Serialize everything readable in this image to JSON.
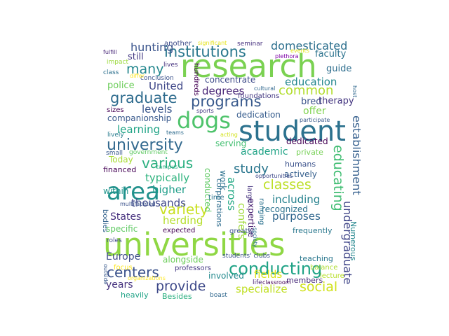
{
  "words": [
    {
      "id": "w-universities",
      "text": "universities",
      "color": "#8fd744"
    },
    {
      "id": "w-research",
      "text": "research",
      "color": "#7ad151"
    },
    {
      "id": "w-student",
      "text": "student",
      "color": "#2c728e"
    },
    {
      "id": "w-dogs",
      "text": "dogs",
      "color": "#4ec36b"
    },
    {
      "id": "w-area",
      "text": "area",
      "color": "#21918c"
    },
    {
      "id": "w-institutions",
      "text": "institutions",
      "color": "#2a788e"
    },
    {
      "id": "w-conducting",
      "text": "conducting",
      "color": "#20a386"
    },
    {
      "id": "w-university",
      "text": "university",
      "color": "#31688e"
    },
    {
      "id": "w-graduate",
      "text": "graduate",
      "color": "#2f6c8e"
    },
    {
      "id": "w-programs",
      "text": "programs",
      "color": "#38598c"
    },
    {
      "id": "w-various",
      "text": "various",
      "color": "#29af7f"
    },
    {
      "id": "w-variety",
      "text": "variety",
      "color": "#c8e020"
    },
    {
      "id": "w-centers",
      "text": "centers",
      "color": "#3b528b"
    },
    {
      "id": "w-provide",
      "text": "provide",
      "color": "#3e4989"
    },
    {
      "id": "w-social",
      "text": "social",
      "color": "#d0e11c"
    },
    {
      "id": "w-classes",
      "text": "classes",
      "color": "#bddf26"
    },
    {
      "id": "w-many",
      "text": "many",
      "color": "#24878e"
    },
    {
      "id": "w-common",
      "text": "common",
      "color": "#b2dd2d"
    },
    {
      "id": "w-study",
      "text": "study",
      "color": "#2a768e"
    },
    {
      "id": "w-hunting",
      "text": "hunting",
      "color": "#3a548c"
    },
    {
      "id": "w-domesticated",
      "text": "domesticated",
      "color": "#2d708e"
    },
    {
      "id": "w-educating",
      "text": "educating",
      "color": "#40bd72"
    },
    {
      "id": "w-establishment",
      "text": "establishment",
      "color": "#355f8d"
    },
    {
      "id": "w-undergraduate",
      "text": "undergraduate",
      "color": "#404688"
    },
    {
      "id": "w-degrees",
      "text": "degrees",
      "color": "#482576"
    },
    {
      "id": "w-united",
      "text": "United",
      "color": "#3f4788"
    },
    {
      "id": "w-education",
      "text": "education",
      "color": "#24878e"
    },
    {
      "id": "w-levels",
      "text": "levels",
      "color": "#39568c"
    },
    {
      "id": "w-learning",
      "text": "learning",
      "color": "#20a486"
    },
    {
      "id": "w-typically",
      "text": "typically",
      "color": "#2db27d"
    },
    {
      "id": "w-higher",
      "text": "higher",
      "color": "#1f9e89"
    },
    {
      "id": "w-thousands",
      "text": "thousands",
      "color": "#3f4889"
    },
    {
      "id": "w-herding",
      "text": "herding",
      "color": "#b5de2b"
    },
    {
      "id": "w-states",
      "text": "States",
      "color": "#46307e"
    },
    {
      "id": "w-across",
      "text": "across",
      "color": "#22a884"
    },
    {
      "id": "w-including",
      "text": "including",
      "color": "#26828e"
    },
    {
      "id": "w-purposes",
      "text": "purposes",
      "color": "#31678e"
    },
    {
      "id": "w-academic",
      "text": "academic",
      "color": "#20a386"
    },
    {
      "id": "w-fields",
      "text": "fields",
      "color": "#dde318"
    },
    {
      "id": "w-specialize",
      "text": "specialize",
      "color": "#c0df25"
    },
    {
      "id": "w-europe",
      "text": "Europe",
      "color": "#3e4c8a"
    },
    {
      "id": "w-years",
      "text": "years",
      "color": "#46337f"
    },
    {
      "id": "w-offer",
      "text": "offer",
      "color": "#7fd34e"
    },
    {
      "id": "w-bred",
      "text": "bred",
      "color": "#3b528b"
    },
    {
      "id": "w-therapy",
      "text": "therapy",
      "color": "#453781"
    },
    {
      "id": "w-guide",
      "text": "guide",
      "color": "#2e6e8e"
    },
    {
      "id": "w-faculty",
      "text": "faculty",
      "color": "#2c738e"
    },
    {
      "id": "w-still",
      "text": "still",
      "color": "#443983"
    },
    {
      "id": "w-police",
      "text": "police",
      "color": "#6ccd5a"
    },
    {
      "id": "w-concentrate",
      "text": "concentrate",
      "color": "#3e4a89"
    },
    {
      "id": "w-companionship",
      "text": "companionship",
      "color": "#38598c"
    },
    {
      "id": "w-serving",
      "text": "serving",
      "color": "#43bf71"
    },
    {
      "id": "w-dedication",
      "text": "dedication",
      "color": "#365c8d"
    },
    {
      "id": "w-dedicated",
      "text": "dedicated",
      "color": "#440154"
    },
    {
      "id": "w-work",
      "text": "work",
      "color": "#2d718e"
    },
    {
      "id": "w-conducted",
      "text": "conducted",
      "color": "#5ec962"
    },
    {
      "id": "w-corporations",
      "text": "corporations",
      "color": "#2e6d8e"
    },
    {
      "id": "w-confers",
      "text": "confers",
      "color": "#9fda3a"
    },
    {
      "id": "w-expertise",
      "text": "expertise",
      "color": "#482071"
    },
    {
      "id": "w-recognized",
      "text": "recognized",
      "color": "#2c728e"
    },
    {
      "id": "w-actively",
      "text": "actively",
      "color": "#355f8d"
    },
    {
      "id": "w-humans",
      "text": "humans",
      "color": "#3b528b"
    },
    {
      "id": "w-private",
      "text": "private",
      "color": "#75d054"
    },
    {
      "id": "w-today",
      "text": "Today",
      "color": "#a8db34"
    },
    {
      "id": "w-financed",
      "text": "financed",
      "color": "#440154"
    },
    {
      "id": "w-within",
      "text": "within",
      "color": "#1f948c"
    },
    {
      "id": "w-specific",
      "text": "specific",
      "color": "#5ec962"
    },
    {
      "id": "w-expected",
      "text": "expected",
      "color": "#440154"
    },
    {
      "id": "w-alongside",
      "text": "alongside",
      "color": "#6ccd5a"
    },
    {
      "id": "w-involved",
      "text": "involved",
      "color": "#238a8d"
    },
    {
      "id": "w-members",
      "text": "members",
      "color": "#472a7a"
    },
    {
      "id": "w-numerous",
      "text": "Numerous",
      "color": "#24878e"
    },
    {
      "id": "w-teaching",
      "text": "teaching",
      "color": "#2a778e"
    },
    {
      "id": "w-frequently",
      "text": "frequently",
      "color": "#2a788e"
    },
    {
      "id": "w-greatly",
      "text": "greatly",
      "color": "#3b528b"
    },
    {
      "id": "w-students-clubs",
      "text": "students' clubs",
      "color": "#3b528b"
    },
    {
      "id": "w-professors",
      "text": "professors",
      "color": "#443983"
    },
    {
      "id": "w-focus",
      "text": "focus",
      "color": "#fde725"
    },
    {
      "id": "w-heavily",
      "text": "heavily",
      "color": "#20a386"
    },
    {
      "id": "w-besides",
      "text": "Besides",
      "color": "#29af7f"
    },
    {
      "id": "w-boast",
      "text": "boast",
      "color": "#31688e"
    },
    {
      "id": "w-life",
      "text": "life",
      "color": "#482173"
    },
    {
      "id": "w-classroom",
      "text": "classroom",
      "color": "#440154"
    },
    {
      "id": "w-balance",
      "text": "balance",
      "color": "#addc30"
    },
    {
      "id": "w-lecture",
      "text": "lecture",
      "color": "#b8de29"
    },
    {
      "id": "w-outside",
      "text": "outside",
      "color": "#38598c"
    },
    {
      "id": "w-organizations",
      "text": "organizations",
      "color": "#fde725"
    },
    {
      "id": "w-multifaceted",
      "text": "multifaceted",
      "color": "#3b528b"
    },
    {
      "id": "w-bodies",
      "text": "bodies",
      "color": "#33638d"
    },
    {
      "id": "w-time",
      "text": "time",
      "color": "#2c728e"
    },
    {
      "id": "w-roles",
      "text": "roles",
      "color": "#3e4989"
    },
    {
      "id": "w-society",
      "text": "society",
      "color": "#2d708e"
    },
    {
      "id": "w-ranging",
      "text": "ranging",
      "color": "#2c728e"
    },
    {
      "id": "w-large",
      "text": "large",
      "color": "#46337f"
    },
    {
      "id": "w-opportunities",
      "text": "opportunities",
      "color": "#3e4989"
    },
    {
      "id": "w-campus",
      "text": "campus",
      "color": "#27ad81"
    },
    {
      "id": "w-government",
      "text": "government",
      "color": "#5ec962"
    },
    {
      "id": "w-small",
      "text": "small",
      "color": "#38598c"
    },
    {
      "id": "w-lively",
      "text": "lively",
      "color": "#287c8e"
    },
    {
      "id": "w-teams",
      "text": "teams",
      "color": "#2f6c8e"
    },
    {
      "id": "w-acting",
      "text": "acting",
      "color": "#d2e21b"
    },
    {
      "id": "w-sports",
      "text": "sports",
      "color": "#443983"
    },
    {
      "id": "w-sizes",
      "text": "sizes",
      "color": "#440154"
    },
    {
      "id": "w-conclusion",
      "text": "conclusion",
      "color": "#3b528b"
    },
    {
      "id": "w-lives",
      "text": "lives",
      "color": "#46327e"
    },
    {
      "id": "w-hundreds",
      "text": "hundreds",
      "color": "#440154"
    },
    {
      "id": "w-impact",
      "text": "impact",
      "color": "#9bd93c"
    },
    {
      "id": "w-differ",
      "text": "differ",
      "color": "#fde725"
    },
    {
      "id": "w-class",
      "text": "class",
      "color": "#2d708e"
    },
    {
      "id": "w-fulfill",
      "text": "fulfill",
      "color": "#482878"
    },
    {
      "id": "w-another",
      "text": "another",
      "color": "#3e4c8a"
    },
    {
      "id": "w-significant",
      "text": "significant",
      "color": "#e5e419"
    },
    {
      "id": "w-seminar",
      "text": "seminar",
      "color": "#46307e"
    },
    {
      "id": "w-events",
      "text": "events",
      "color": "#e2e418"
    },
    {
      "id": "w-plethora",
      "text": "plethora",
      "color": "#7e03a8"
    },
    {
      "id": "w-host",
      "text": "host",
      "color": "#31688e"
    },
    {
      "id": "w-participate",
      "text": "participate",
      "color": "#38598c"
    },
    {
      "id": "w-cultural",
      "text": "cultural",
      "color": "#31688e"
    },
    {
      "id": "w-foundations",
      "text": "foundations",
      "color": "#443983"
    }
  ]
}
